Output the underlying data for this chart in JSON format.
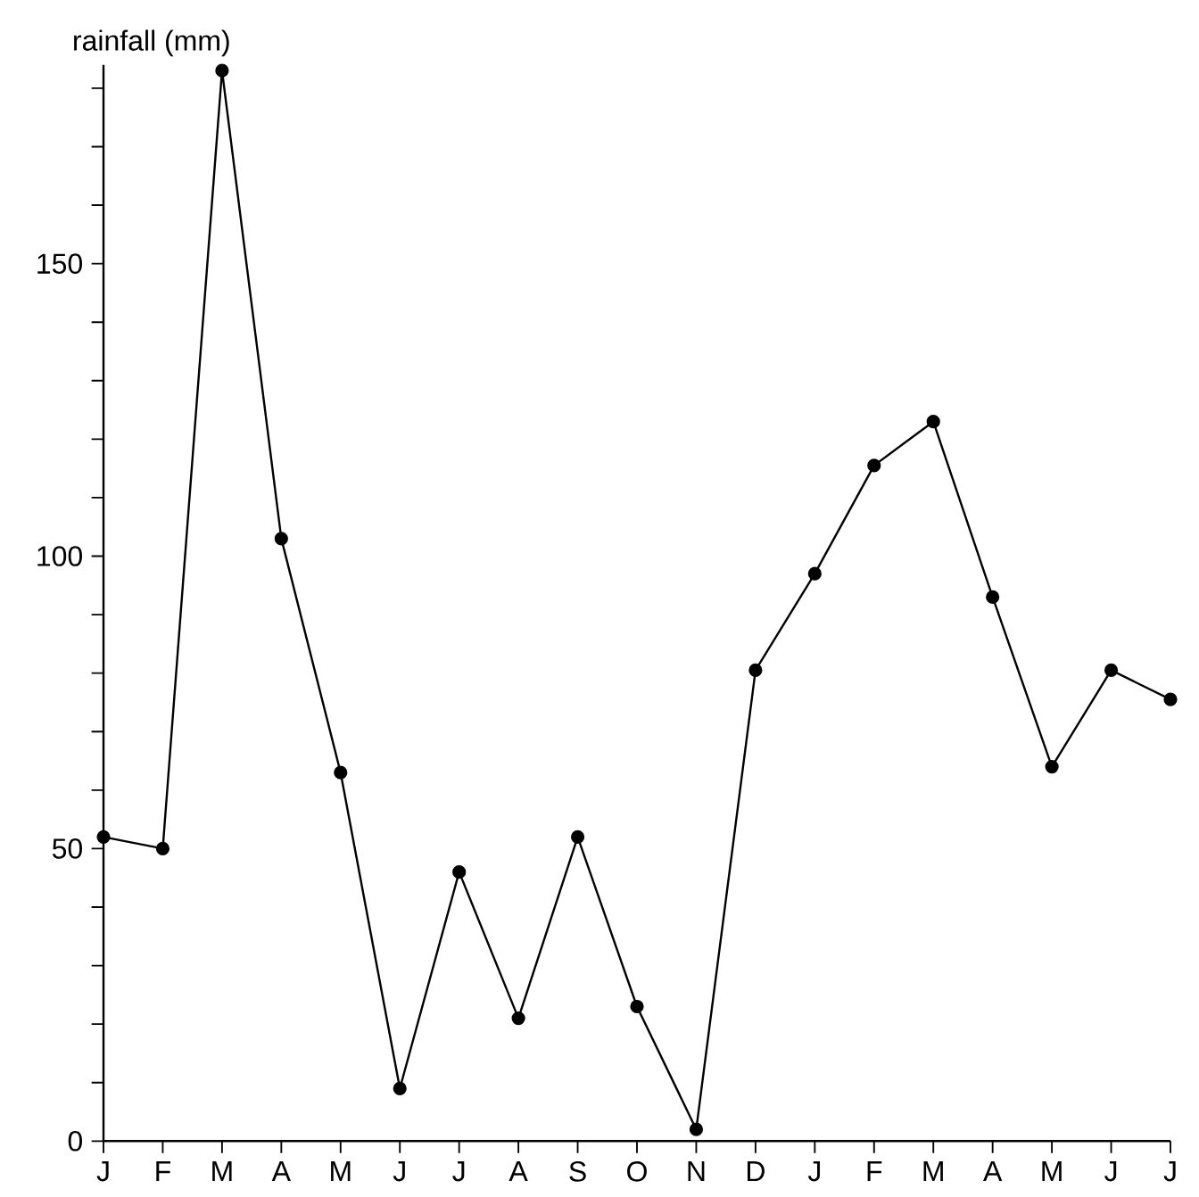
{
  "chart_data": {
    "type": "line",
    "ylabel": "rainfall (mm)",
    "categories": [
      "J",
      "F",
      "M",
      "A",
      "M",
      "J",
      "J",
      "A",
      "S",
      "O",
      "N",
      "D",
      "J",
      "F",
      "M",
      "A",
      "M",
      "J",
      "J"
    ],
    "series": [
      {
        "color": "#000000",
        "values": [
          52,
          50,
          183,
          103,
          63,
          9,
          46,
          21,
          52,
          23,
          2,
          80.5,
          97,
          115.5,
          123,
          93,
          64,
          80.5,
          75.5
        ]
      }
    ],
    "ylim": [
      0,
      184
    ],
    "yticks": [
      0,
      {
        "value": 10,
        "label": null
      },
      {
        "value": 20,
        "label": null
      },
      {
        "value": 30,
        "label": null
      },
      {
        "value": 40,
        "label": null
      },
      50,
      {
        "value": 60,
        "label": null
      },
      {
        "value": 70,
        "label": null
      },
      {
        "value": 80,
        "label": null
      },
      {
        "value": 90,
        "label": null
      },
      100,
      {
        "value": 110,
        "label": null
      },
      {
        "value": 120,
        "label": null
      },
      {
        "value": 130,
        "label": null
      },
      {
        "value": 140,
        "label": null
      },
      150,
      {
        "value": 160,
        "label": null
      },
      {
        "value": 170,
        "label": null
      },
      {
        "value": 180,
        "label": null
      }
    ],
    "marker": "circle",
    "line_style": "solid"
  }
}
